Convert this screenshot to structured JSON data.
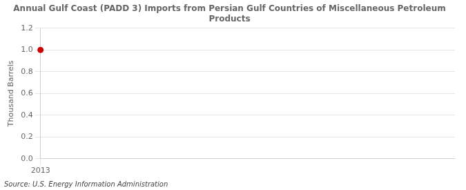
{
  "chart_data": {
    "type": "scatter",
    "title": "Annual Gulf Coast (PADD 3) Imports from Persian Gulf Countries of Miscellaneous Petroleum\nProducts",
    "x": [
      2013
    ],
    "values": [
      1.0
    ],
    "color": "#cc0000",
    "marker": "circle",
    "ylabel": "Thousand Barrels",
    "xlim": [
      2013,
      2023
    ],
    "xticks": [
      2013
    ],
    "ylim": [
      0.0,
      1.2
    ],
    "yticks": [
      {
        "value": 0.0,
        "label": "0.0"
      },
      0.2,
      0.4,
      0.6,
      0.8,
      {
        "value": 1.0,
        "label": "1.0"
      },
      1.2
    ],
    "grid": true,
    "source": "Source: U.S. Energy Information Administration"
  }
}
